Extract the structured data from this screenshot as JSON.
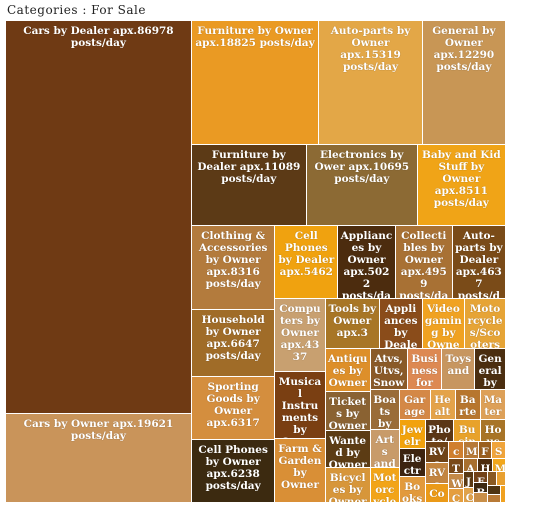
{
  "header": {
    "title": "Categories : For Sale"
  },
  "chart_data": {
    "type": "treemap",
    "title": "Categories : For Sale",
    "items": [
      {
        "label": "Cars by Dealer apx.86978 posts/day",
        "value": 86978,
        "color": "#6f3a14"
      },
      {
        "label": "Cars by Owner apx.19621 posts/day",
        "value": 19621,
        "color": "#c9945a"
      },
      {
        "label": "Furniture by Owner apx.18825 posts/day",
        "value": 18825,
        "color": "#ea9a23"
      },
      {
        "label": "Auto-parts by Owner apx.15319 posts/day",
        "value": 15319,
        "color": "#e3a747"
      },
      {
        "label": "General by Owner apx.12290 posts/day",
        "value": 12290,
        "color": "#c89655"
      },
      {
        "label": "Furniture by Dealer apx.11089 posts/day",
        "value": 11089,
        "color": "#5c3a16"
      },
      {
        "label": "Electronics by Ower apx.10695 posts/day",
        "value": 10695,
        "color": "#8c6a34"
      },
      {
        "label": "Baby and Kid Stuff by Owner apx.8511 posts/day",
        "value": 8511,
        "color": "#f0a417"
      },
      {
        "label": "Clothing & Accessories by Owner apx.8316 posts/day",
        "value": 8316,
        "color": "#b37b3d"
      },
      {
        "label": "Household by Owner apx.6647 posts/day",
        "value": 6647,
        "color": "#a06c28"
      },
      {
        "label": "Sporting Goods by Owner apx.6317",
        "value": 6317,
        "color": "#d48e3e"
      },
      {
        "label": "Cell Phones by Owner apx.6238 posts/day",
        "value": 6238,
        "color": "#3c2a10"
      },
      {
        "label": "Cell Phones by Dealer apx.5462",
        "value": 5462,
        "color": "#f0a20f"
      },
      {
        "label": "Appliances by Owner apx.5022 posts/day",
        "value": 5022,
        "color": "#4c2c0e"
      },
      {
        "label": "Collectibles by Owner apx.4959 posts/day",
        "value": 4959,
        "color": "#a87134"
      },
      {
        "label": "Auto-parts by Dealer apx.4637 posts/day",
        "value": 4637,
        "color": "#7a4b18"
      },
      {
        "label": "Computers by Owner apx.4337",
        "value": 4337,
        "color": "#c8a070"
      },
      {
        "label": "Musical Instruments by Owner",
        "value": 3990,
        "color": "#7a3f12"
      },
      {
        "label": "Farm & Garden by Owner",
        "value": 3800,
        "color": "#d98f36"
      },
      {
        "label": "Tools by Owner apx.3",
        "value": 3200,
        "color": "#a87626"
      },
      {
        "label": "Appliances by Dealer",
        "value": 2500,
        "color": "#8a4c1a"
      },
      {
        "label": "Videogaming by Owner",
        "value": 2500,
        "color": "#f0a222"
      },
      {
        "label": "Motorcycles/Scooters by",
        "value": 2400,
        "color": "#e6a436"
      },
      {
        "label": "Antiques by Owner",
        "value": 2300,
        "color": "#dd8f2a"
      },
      {
        "label": "Tickets by Owner",
        "value": 2100,
        "color": "#8a6232"
      },
      {
        "label": "Wanted by Owner",
        "value": 2000,
        "color": "#5c3c14"
      },
      {
        "label": "Bicycles by Owner",
        "value": 1900,
        "color": "#d7963a"
      },
      {
        "label": "Atvs, Utvs, Snowmo",
        "value": 1800,
        "color": "#8a5a28"
      },
      {
        "label": "Business for Sale",
        "value": 1700,
        "color": "#dd8952"
      },
      {
        "label": "Toys and",
        "value": 1600,
        "color": "#c79660"
      },
      {
        "label": "General by",
        "value": 1500,
        "color": "#4b2e10"
      },
      {
        "label": "Boats by",
        "value": 1400,
        "color": "#9a6c38"
      },
      {
        "label": "Arts and",
        "value": 1300,
        "color": "#c89b6a"
      },
      {
        "label": "Motorcycles/Sc",
        "value": 1200,
        "color": "#f2a418"
      },
      {
        "label": "Garage & M",
        "value": 1100,
        "color": "#d48846"
      },
      {
        "label": "Health",
        "value": 900,
        "color": "#e4a34a"
      },
      {
        "label": "Barter",
        "value": 900,
        "color": "#b7762e"
      },
      {
        "label": "Materials",
        "value": 900,
        "color": "#dda058"
      },
      {
        "label": "Jewelry",
        "value": 900,
        "color": "#f2a20c"
      },
      {
        "label": "Electronic",
        "value": 850,
        "color": "#3d2410"
      },
      {
        "label": "Books",
        "value": 800,
        "color": "#e29a3c"
      },
      {
        "label": "Photo/Video",
        "value": 750,
        "color": "#5b3716"
      },
      {
        "label": "Busin",
        "value": 700,
        "color": "#e8a22a"
      },
      {
        "label": "Household",
        "value": 650,
        "color": "#a87427"
      },
      {
        "label": "RVs by",
        "value": 600,
        "color": "#6f4317"
      },
      {
        "label": "RVs by",
        "value": 580,
        "color": "#c38540"
      },
      {
        "label": "Com",
        "value": 550,
        "color": "#eb9a18"
      },
      {
        "label": "c d",
        "value": 300,
        "color": "#d07f2e"
      },
      {
        "label": "M a",
        "value": 300,
        "color": "#b77a38"
      },
      {
        "label": "F r",
        "value": 280,
        "color": "#9a5f1f"
      },
      {
        "label": "S P",
        "value": 280,
        "color": "#f0a43a"
      },
      {
        "label": "T",
        "value": 260,
        "color": "#7a4a1a"
      },
      {
        "label": "W",
        "value": 250,
        "color": "#c48a48"
      },
      {
        "label": "C",
        "value": 240,
        "color": "#e59e3e"
      },
      {
        "label": "A",
        "value": 230,
        "color": "#a86f2e"
      },
      {
        "label": "H",
        "value": 220,
        "color": "#4d2d0f"
      },
      {
        "label": "M",
        "value": 210,
        "color": "#f2a71c"
      },
      {
        "label": "J",
        "value": 200,
        "color": "#5a3912"
      },
      {
        "label": "C",
        "value": 190,
        "color": "#e0a24a"
      },
      {
        "label": "F",
        "value": 180,
        "color": "#734318"
      },
      {
        "label": "B",
        "value": 170,
        "color": "#3c2810"
      },
      {
        "label": "",
        "value": 160,
        "color": "#c98f48"
      },
      {
        "label": "",
        "value": 150,
        "color": "#8a5a22"
      },
      {
        "label": "",
        "value": 140,
        "color": "#e8a030"
      },
      {
        "label": "",
        "value": 130,
        "color": "#4e3412"
      },
      {
        "label": "",
        "value": 120,
        "color": "#b87a36"
      },
      {
        "label": "",
        "value": 110,
        "color": "#f0a120"
      }
    ]
  }
}
